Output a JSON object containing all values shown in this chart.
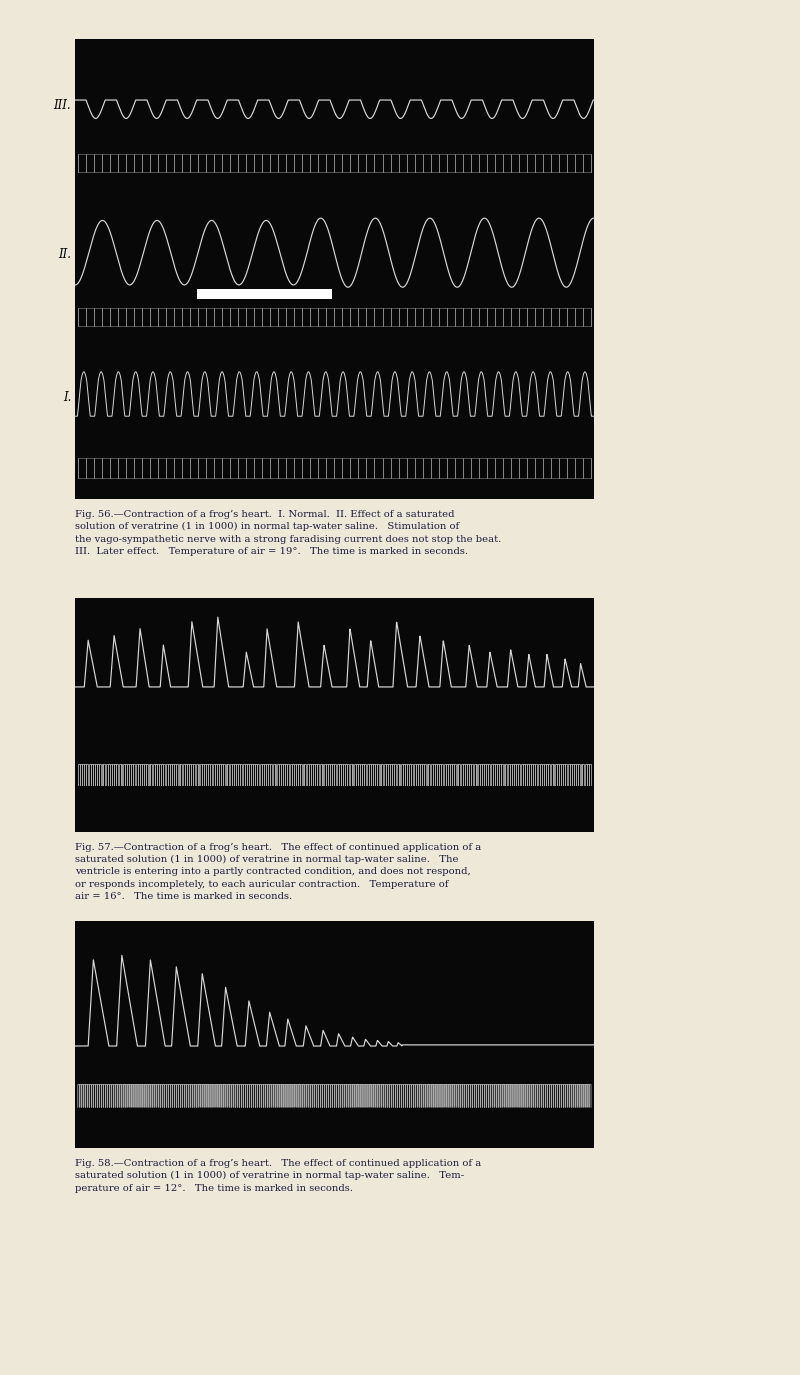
{
  "page_bg": "#ede8d8",
  "panel_bg": "#080808",
  "wave_color": "#d8d8d8",
  "caption_color": "#1a1a3a",
  "fig1_caption": "Fig. 56.—Contraction of a frog’s heart.  I. Normal.  II. Effect of a saturated\nsolution of veratrine (1 in 1000) in normal tap-water saline.   Stimulation of\nthe vago-sympathetic nerve with a strong faradising current does not stop the beat.\nIII.  Later effect.   Temperature of air = 19°.   The time is marked in seconds.",
  "fig2_caption": "Fig. 57.—Contraction of a frog’s heart.   The effect of continued application of a\nsaturated solution (1 in 1000) of veratrine in normal tap-water saline.   The\nventricle is entering into a partly contracted condition, and does not respond,\nor responds incompletely, to each auricular contraction.   Temperature of\nair = 16°.   The time is marked in seconds.",
  "fig3_caption": "Fig. 58.—Contraction of a frog’s heart.   The effect of continued application of a\nsaturated solution (1 in 1000) of veratrine in normal tap-water saline.   Tem-\nperature of air = 12°.   The time is marked in seconds."
}
